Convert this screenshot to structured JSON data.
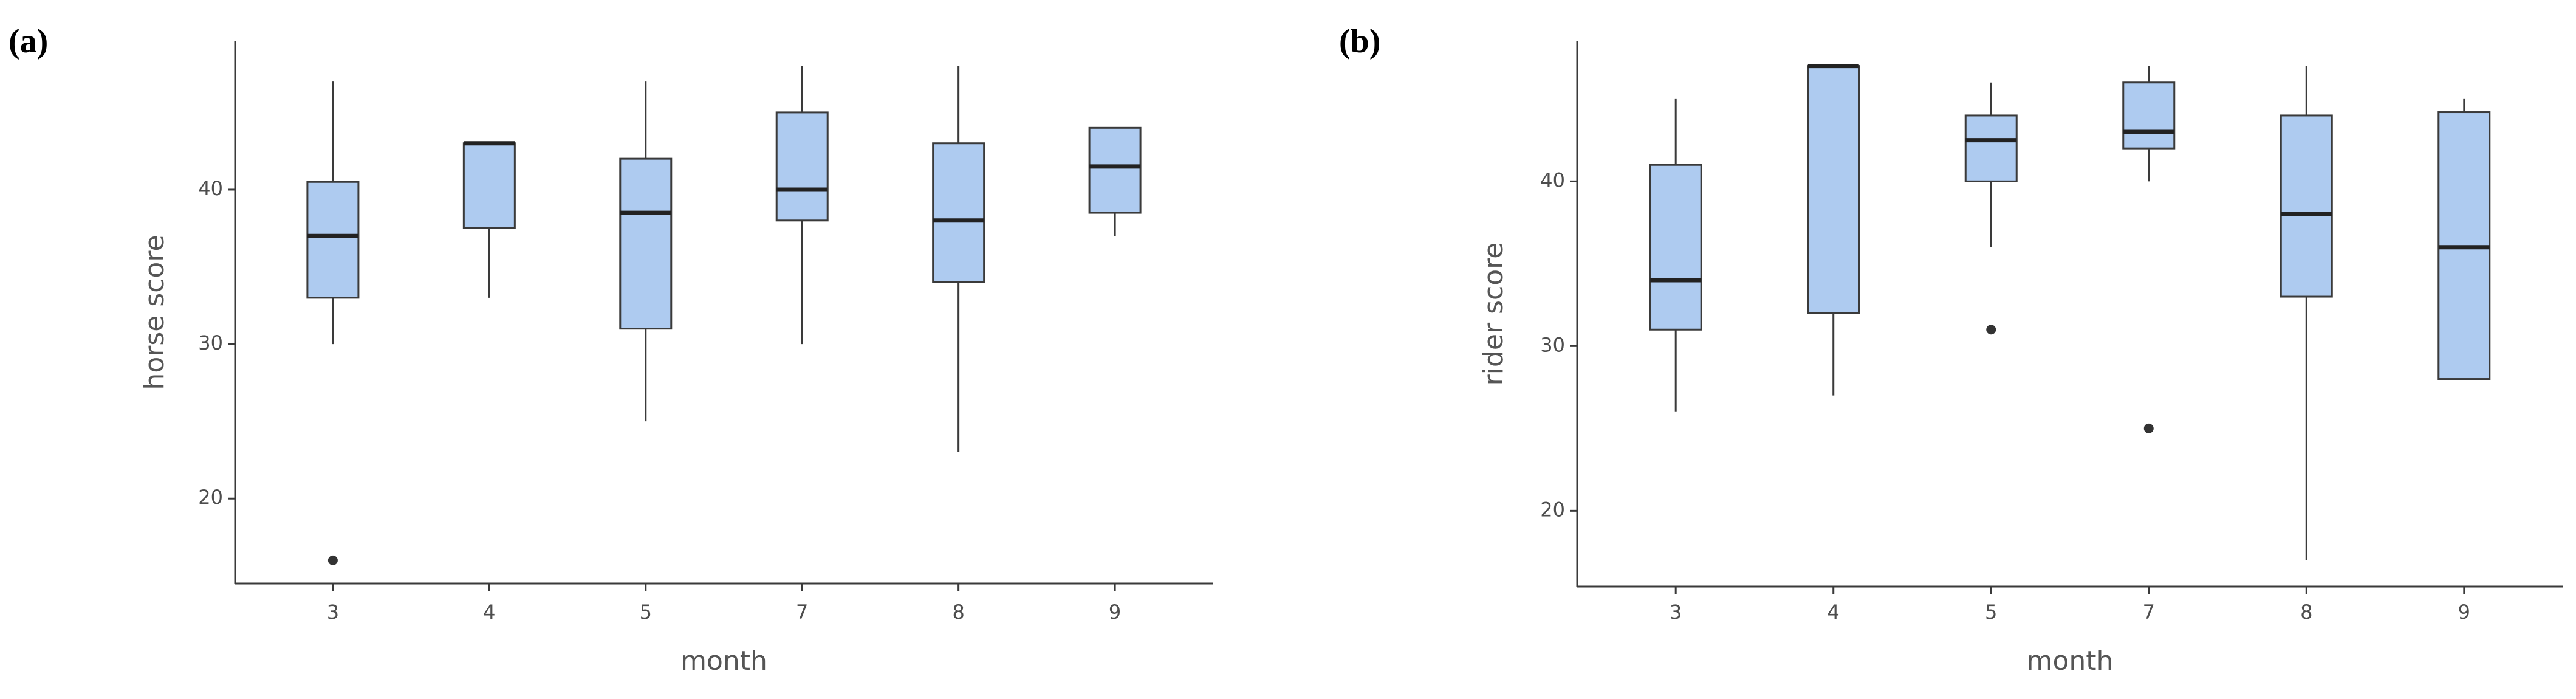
{
  "chart_data": [
    {
      "type": "box",
      "label": "(a)",
      "y_label": "horse score",
      "x_label": "month",
      "color": "#aecbf0",
      "categories": [
        "3",
        "4",
        "5",
        "7",
        "8",
        "9"
      ],
      "boxes": [
        {
          "whislo": 30,
          "q1": 33,
          "med": 37,
          "q3": 40.5,
          "whishi": 47,
          "fliers": [
            16
          ]
        },
        {
          "whislo": 33,
          "q1": 37.5,
          "med": 43,
          "q3": 43,
          "whishi": 43,
          "fliers": []
        },
        {
          "whislo": 25,
          "q1": 31,
          "med": 38.5,
          "q3": 42,
          "whishi": 47,
          "fliers": []
        },
        {
          "whislo": 30,
          "q1": 38,
          "med": 40,
          "q3": 45,
          "whishi": 48,
          "fliers": []
        },
        {
          "whislo": 23,
          "q1": 34,
          "med": 38,
          "q3": 43,
          "whishi": 48,
          "fliers": []
        },
        {
          "whislo": 37,
          "q1": 38.5,
          "med": 41.5,
          "q3": 44,
          "whishi": 44,
          "fliers": []
        }
      ],
      "ylim": [
        14.5,
        49.6
      ],
      "yticks": [
        20,
        30,
        40
      ]
    },
    {
      "type": "box",
      "label": "(b)",
      "y_label": "rider score",
      "x_label": "month",
      "color": "#aecbf0",
      "categories": [
        "3",
        "4",
        "5",
        "7",
        "8",
        "9"
      ],
      "boxes": [
        {
          "whislo": 26,
          "q1": 31,
          "med": 34,
          "q3": 41,
          "whishi": 45,
          "fliers": []
        },
        {
          "whislo": 27,
          "q1": 32,
          "med": 47,
          "q3": 47,
          "whishi": 47,
          "fliers": []
        },
        {
          "whislo": 36,
          "q1": 40,
          "med": 42.5,
          "q3": 44,
          "whishi": 46,
          "fliers": [
            31
          ]
        },
        {
          "whislo": 40,
          "q1": 42,
          "med": 43,
          "q3": 46,
          "whishi": 47,
          "fliers": [
            25
          ]
        },
        {
          "whislo": 17,
          "q1": 33,
          "med": 38,
          "q3": 44,
          "whishi": 47,
          "fliers": []
        },
        {
          "whislo": 28,
          "q1": 28,
          "med": 36,
          "q3": 44.2,
          "whishi": 45,
          "fliers": []
        }
      ],
      "ylim": [
        15.4,
        48.5
      ],
      "yticks": [
        20,
        30,
        40
      ]
    }
  ]
}
